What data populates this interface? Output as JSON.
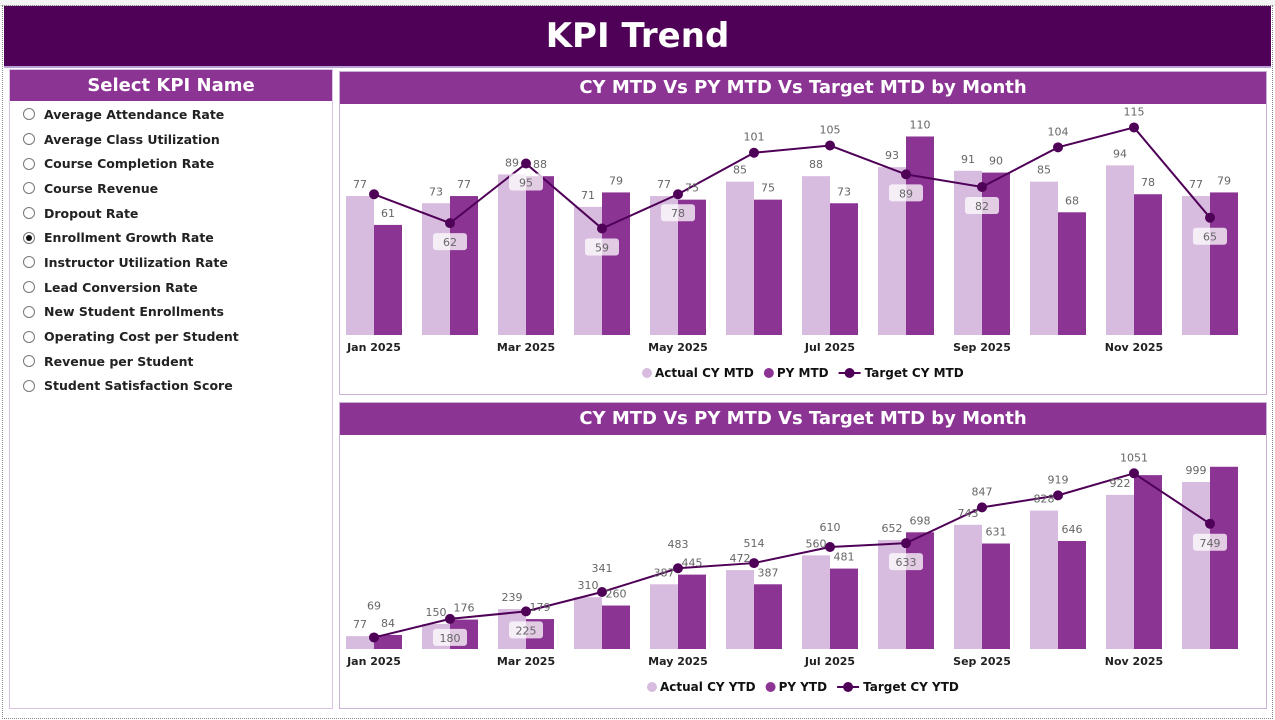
{
  "header": {
    "title": "KPI Trend"
  },
  "selector": {
    "title": "Select KPI Name",
    "selected": "Enrollment Growth Rate",
    "items": [
      "Average Attendance Rate",
      "Average Class Utilization",
      "Course Completion Rate",
      "Course Revenue",
      "Dropout Rate",
      "Enrollment Growth Rate",
      "Instructor Utilization Rate",
      "Lead Conversion Rate",
      "New Student Enrollments",
      "Operating Cost per Student",
      "Revenue per Student",
      "Student Satisfaction Score"
    ]
  },
  "colors": {
    "header": "#4f0057",
    "band": "#8b3494",
    "actual": "#d8bcdf",
    "py": "#8b3494",
    "target": "#4f0057"
  },
  "chart_data": [
    {
      "type": "bar+line",
      "title": "CY MTD Vs PY MTD Vs Target MTD by Month",
      "categories": [
        "Jan 2025",
        "Feb 2025",
        "Mar 2025",
        "Apr 2025",
        "May 2025",
        "Jun 2025",
        "Jul 2025",
        "Aug 2025",
        "Sep 2025",
        "Oct 2025",
        "Nov 2025",
        "Dec 2025"
      ],
      "tick_labels": [
        "Jan 2025",
        "",
        "Mar 2025",
        "",
        "May 2025",
        "",
        "Jul 2025",
        "",
        "Sep 2025",
        "",
        "Nov 2025",
        ""
      ],
      "series": [
        {
          "name": "Actual CY MTD",
          "type": "bar",
          "values": [
            77,
            73,
            89,
            71,
            77,
            85,
            88,
            93,
            91,
            85,
            94,
            77
          ]
        },
        {
          "name": "PY MTD",
          "type": "bar",
          "values": [
            61,
            77,
            88,
            79,
            75,
            75,
            73,
            110,
            90,
            68,
            78,
            79
          ]
        },
        {
          "name": "Target CY MTD",
          "type": "line",
          "values": [
            78,
            62,
            95,
            59,
            78,
            101,
            105,
            89,
            82,
            104,
            115,
            65
          ],
          "labels": [
            null,
            62,
            95,
            59,
            78,
            101,
            105,
            89,
            82,
            104,
            115,
            65
          ]
        }
      ],
      "ylim": [
        0,
        128
      ],
      "legend": "bottom-center"
    },
    {
      "type": "bar+line",
      "title": "CY MTD Vs PY MTD Vs Target MTD by Month",
      "categories": [
        "Jan 2025",
        "Feb 2025",
        "Mar 2025",
        "Apr 2025",
        "May 2025",
        "Jun 2025",
        "Jul 2025",
        "Aug 2025",
        "Sep 2025",
        "Oct 2025",
        "Nov 2025",
        "Dec 2025"
      ],
      "tick_labels": [
        "Jan 2025",
        "",
        "Mar 2025",
        "",
        "May 2025",
        "",
        "Jul 2025",
        "",
        "Sep 2025",
        "",
        "Nov 2025",
        ""
      ],
      "series": [
        {
          "name": "Actual CY YTD",
          "type": "bar",
          "values": [
            77,
            150,
            239,
            310,
            387,
            472,
            560,
            652,
            743,
            828,
            922,
            999
          ],
          "labels": [
            77,
            150,
            239,
            310,
            387,
            472,
            560,
            652,
            743,
            828,
            922,
            999
          ]
        },
        {
          "name": "PY YTD",
          "type": "bar",
          "values": [
            84,
            176,
            179,
            260,
            445,
            387,
            481,
            698,
            631,
            646,
            1040,
            1090
          ],
          "labels": [
            84,
            176,
            179,
            260,
            445,
            387,
            481,
            698,
            631,
            646,
            null,
            null
          ]
        },
        {
          "name": "Target CY YTD",
          "type": "line",
          "values": [
            69,
            180,
            225,
            341,
            483,
            514,
            610,
            633,
            847,
            919,
            1051,
            749
          ],
          "labels": [
            69,
            180,
            225,
            341,
            483,
            514,
            610,
            633,
            847,
            919,
            1051,
            749
          ]
        }
      ],
      "ylim": [
        0,
        1280
      ],
      "legend": "bottom-center"
    }
  ]
}
